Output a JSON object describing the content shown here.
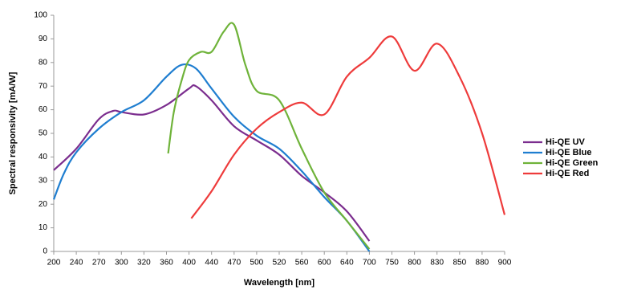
{
  "chart_data": {
    "type": "line",
    "xlabel": "Wavelength [nm]",
    "ylabel": "Spectral responsivity [mA/W]",
    "xticks": [
      200,
      240,
      270,
      300,
      320,
      360,
      400,
      440,
      470,
      500,
      520,
      560,
      600,
      640,
      700,
      750,
      800,
      830,
      850,
      880,
      900
    ],
    "xlim": [
      200,
      900
    ],
    "ylim": [
      0,
      100
    ],
    "yticks": [
      0,
      10,
      20,
      30,
      40,
      50,
      60,
      70,
      80,
      90,
      100
    ],
    "grid": false,
    "legend": "right",
    "series": [
      {
        "name": "Hi-QE UV",
        "color": "#7b2d8e",
        "x": [
          200,
          240,
          270,
          289,
          300,
          320,
          360,
          400,
          412,
          440,
          470,
          500,
          520,
          560,
          600,
          640,
          700
        ],
        "values": [
          34.4,
          43.5,
          56,
          59.5,
          59,
          58,
          62,
          69,
          70,
          64,
          53,
          47,
          41,
          32,
          25,
          17,
          4.4
        ]
      },
      {
        "name": "Hi-QE Blue",
        "color": "#1f7ed0",
        "x": [
          200,
          218,
          240,
          270,
          300,
          320,
          360,
          387,
          412,
          440,
          470,
          500,
          520,
          560,
          600,
          640,
          700
        ],
        "values": [
          22,
          33,
          42,
          52,
          59,
          64,
          74,
          79,
          77.5,
          69,
          57,
          49,
          43.5,
          34,
          23,
          13,
          0
        ]
      },
      {
        "name": "Hi-QE Green",
        "color": "#6fb33a",
        "x": [
          363,
          373,
          387,
          400,
          421,
          440,
          456,
          470,
          485,
          500,
          520,
          560,
          600,
          640,
          700
        ],
        "values": [
          41.5,
          59,
          72.5,
          81,
          84.5,
          84.5,
          93,
          96,
          79,
          68,
          64,
          43.5,
          25,
          13,
          1
        ]
      },
      {
        "name": "Hi-QE Red",
        "color": "#ee3b3b",
        "x": [
          404,
          440,
          470,
          500,
          520,
          560,
          600,
          640,
          700,
          750,
          800,
          830,
          850,
          880,
          900
        ],
        "values": [
          14,
          25.5,
          41,
          52,
          59,
          63,
          58,
          74,
          82,
          91,
          76.5,
          88,
          74,
          50,
          15.5
        ]
      }
    ]
  }
}
